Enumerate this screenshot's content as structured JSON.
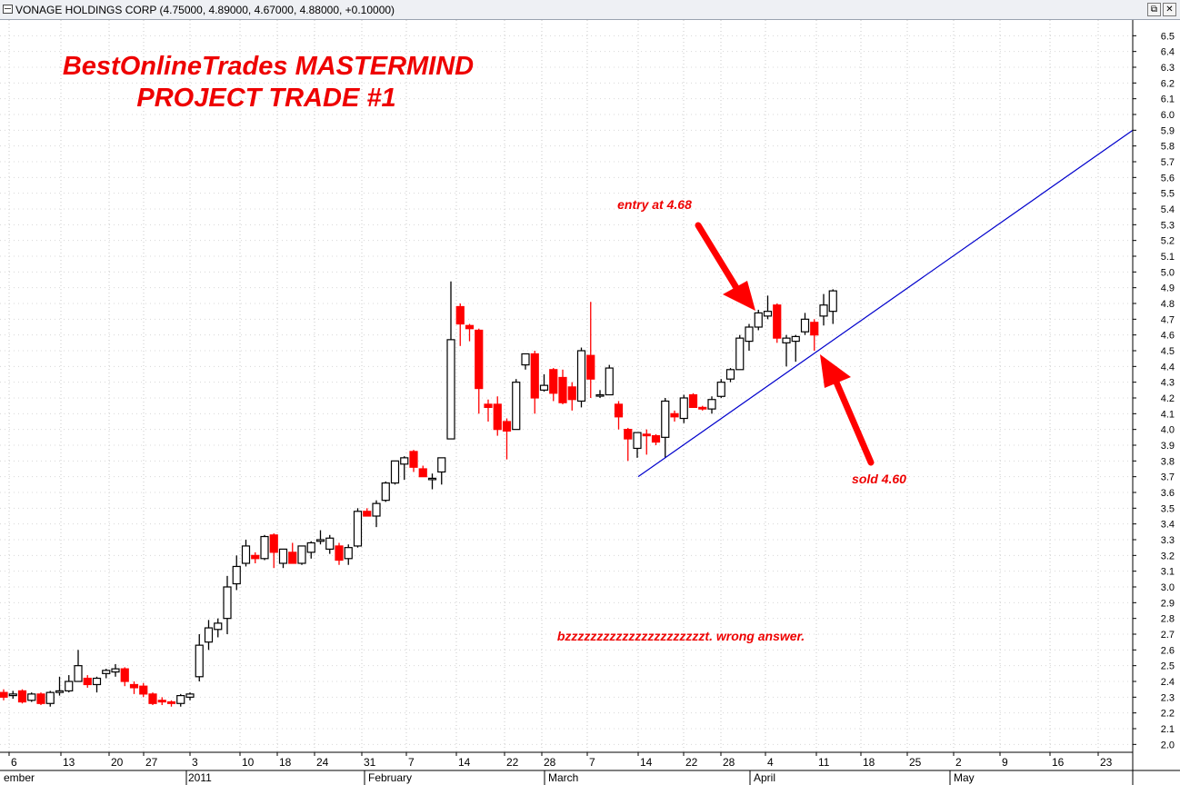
{
  "window": {
    "title": "VONAGE HOLDINGS CORP (4.75000, 4.89000, 4.67000, 4.88000, +0.10000)",
    "restore_glyph": "⧉",
    "close_glyph": "✕"
  },
  "chart_data": {
    "type": "candlestick",
    "title": "BestOnlineTrades MASTERMIND",
    "subtitle": "PROJECT TRADE #1",
    "ylim": [
      1.95,
      6.6
    ],
    "y_ticks": [
      "2.0",
      "2.1",
      "2.2",
      "2.3",
      "2.4",
      "2.5",
      "2.6",
      "2.7",
      "2.8",
      "2.9",
      "3.0",
      "3.1",
      "3.2",
      "3.3",
      "3.4",
      "3.5",
      "3.6",
      "3.7",
      "3.8",
      "3.9",
      "4.0",
      "4.1",
      "4.2",
      "4.3",
      "4.4",
      "4.5",
      "4.6",
      "4.7",
      "4.8",
      "4.9",
      "5.0",
      "5.1",
      "5.2",
      "5.3",
      "5.4",
      "5.5",
      "5.6",
      "5.7",
      "5.8",
      "5.9",
      "6.0",
      "6.1",
      "6.2",
      "6.3",
      "6.4",
      "6.5"
    ],
    "x_ticks": [
      "6",
      "13",
      "20",
      "27",
      "3",
      "10",
      "18",
      "24",
      "31",
      "7",
      "14",
      "22",
      "28",
      "7",
      "14",
      "22",
      "28",
      "4",
      "11",
      "18",
      "25",
      "2",
      "9",
      "16",
      "23"
    ],
    "month_labels": [
      "ember",
      "2011",
      "February",
      "March",
      "April",
      "May"
    ],
    "colors": {
      "up_body": "#ffffff",
      "up_outline": "#000000",
      "down_body": "#ff0000",
      "trendline": "#0000cc",
      "annotation": "#ee0000"
    },
    "candles": [
      [
        2.33,
        2.35,
        2.28,
        2.3
      ],
      [
        2.31,
        2.34,
        2.29,
        2.32
      ],
      [
        2.34,
        2.35,
        2.26,
        2.27
      ],
      [
        2.28,
        2.33,
        2.27,
        2.32
      ],
      [
        2.32,
        2.33,
        2.25,
        2.26
      ],
      [
        2.26,
        2.34,
        2.24,
        2.33
      ],
      [
        2.33,
        2.43,
        2.31,
        2.34
      ],
      [
        2.34,
        2.44,
        2.33,
        2.4
      ],
      [
        2.4,
        2.6,
        2.4,
        2.5
      ],
      [
        2.42,
        2.44,
        2.36,
        2.38
      ],
      [
        2.38,
        2.43,
        2.33,
        2.42
      ],
      [
        2.45,
        2.48,
        2.42,
        2.47
      ],
      [
        2.46,
        2.51,
        2.43,
        2.48
      ],
      [
        2.48,
        2.49,
        2.37,
        2.4
      ],
      [
        2.38,
        2.4,
        2.32,
        2.36
      ],
      [
        2.37,
        2.39,
        2.3,
        2.32
      ],
      [
        2.32,
        2.33,
        2.25,
        2.26
      ],
      [
        2.28,
        2.3,
        2.25,
        2.27
      ],
      [
        2.27,
        2.28,
        2.24,
        2.26
      ],
      [
        2.26,
        2.32,
        2.24,
        2.31
      ],
      [
        2.3,
        2.33,
        2.28,
        2.32
      ],
      [
        2.43,
        2.7,
        2.4,
        2.63
      ],
      [
        2.65,
        2.79,
        2.6,
        2.74
      ],
      [
        2.73,
        2.8,
        2.68,
        2.77
      ],
      [
        2.8,
        3.07,
        2.7,
        3.0
      ],
      [
        3.02,
        3.2,
        2.98,
        3.13
      ],
      [
        3.15,
        3.3,
        3.13,
        3.26
      ],
      [
        3.2,
        3.22,
        3.15,
        3.18
      ],
      [
        3.18,
        3.33,
        3.17,
        3.32
      ],
      [
        3.33,
        3.34,
        3.12,
        3.22
      ],
      [
        3.15,
        3.24,
        3.12,
        3.24
      ],
      [
        3.22,
        3.28,
        3.15,
        3.15
      ],
      [
        3.15,
        3.26,
        3.14,
        3.26
      ],
      [
        3.22,
        3.29,
        3.18,
        3.28
      ],
      [
        3.29,
        3.36,
        3.27,
        3.3
      ],
      [
        3.24,
        3.33,
        3.21,
        3.31
      ],
      [
        3.26,
        3.28,
        3.14,
        3.17
      ],
      [
        3.18,
        3.27,
        3.14,
        3.25
      ],
      [
        3.26,
        3.5,
        3.25,
        3.48
      ],
      [
        3.48,
        3.5,
        3.45,
        3.45
      ],
      [
        3.45,
        3.55,
        3.38,
        3.53
      ],
      [
        3.55,
        3.67,
        3.54,
        3.66
      ],
      [
        3.66,
        3.77,
        3.65,
        3.8
      ],
      [
        3.78,
        3.83,
        3.68,
        3.82
      ],
      [
        3.86,
        3.87,
        3.73,
        3.76
      ],
      [
        3.75,
        3.77,
        3.7,
        3.7
      ],
      [
        3.69,
        3.72,
        3.62,
        3.69
      ],
      [
        3.73,
        3.82,
        3.65,
        3.82
      ],
      [
        3.94,
        4.94,
        3.94,
        4.57
      ],
      [
        4.78,
        4.8,
        4.53,
        4.67
      ],
      [
        4.66,
        4.67,
        4.56,
        4.64
      ],
      [
        4.63,
        4.64,
        4.1,
        4.26
      ],
      [
        4.16,
        4.19,
        4.05,
        4.14
      ],
      [
        4.16,
        4.21,
        3.96,
        4.0
      ],
      [
        4.05,
        4.07,
        3.81,
        3.99
      ],
      [
        4.0,
        4.32,
        4.0,
        4.3
      ],
      [
        4.41,
        4.48,
        4.38,
        4.48
      ],
      [
        4.48,
        4.5,
        4.1,
        4.2
      ],
      [
        4.25,
        4.35,
        4.24,
        4.28
      ],
      [
        4.38,
        4.39,
        4.18,
        4.23
      ],
      [
        4.33,
        4.38,
        4.16,
        4.17
      ],
      [
        4.27,
        4.3,
        4.12,
        4.19
      ],
      [
        4.18,
        4.52,
        4.14,
        4.5
      ],
      [
        4.47,
        4.81,
        4.2,
        4.32
      ],
      [
        4.22,
        4.25,
        4.2,
        4.22
      ],
      [
        4.22,
        4.41,
        4.23,
        4.39
      ],
      [
        4.16,
        4.18,
        4.0,
        4.08
      ],
      [
        4.0,
        4.01,
        3.8,
        3.94
      ],
      [
        3.88,
        3.98,
        3.82,
        3.98
      ],
      [
        3.97,
        4.0,
        3.84,
        3.96
      ],
      [
        3.96,
        3.97,
        3.9,
        3.92
      ],
      [
        3.95,
        4.2,
        3.82,
        4.18
      ],
      [
        4.1,
        4.12,
        4.05,
        4.08
      ],
      [
        4.07,
        4.22,
        4.04,
        4.2
      ],
      [
        4.22,
        4.23,
        4.15,
        4.14
      ],
      [
        4.14,
        4.15,
        4.12,
        4.13
      ],
      [
        4.13,
        4.21,
        4.1,
        4.19
      ],
      [
        4.21,
        4.32,
        4.2,
        4.3
      ],
      [
        4.32,
        4.39,
        4.3,
        4.38
      ],
      [
        4.38,
        4.6,
        4.38,
        4.58
      ],
      [
        4.56,
        4.67,
        4.5,
        4.65
      ],
      [
        4.65,
        4.76,
        4.63,
        4.74
      ],
      [
        4.72,
        4.85,
        4.7,
        4.75
      ],
      [
        4.79,
        4.8,
        4.55,
        4.58
      ],
      [
        4.55,
        4.6,
        4.4,
        4.58
      ],
      [
        4.56,
        4.6,
        4.43,
        4.59
      ],
      [
        4.62,
        4.74,
        4.6,
        4.7
      ],
      [
        4.68,
        4.7,
        4.5,
        4.6
      ],
      [
        4.72,
        4.86,
        4.66,
        4.79
      ],
      [
        4.75,
        4.89,
        4.67,
        4.88
      ]
    ],
    "trendline": {
      "start": {
        "x": "2011-03-14",
        "y": 3.7
      },
      "end": {
        "x": "2011-05-27",
        "y": 5.9
      }
    },
    "annotations": {
      "entry": "entry at 4.68",
      "sold": "sold 4.60",
      "comment": "bzzzzzzzzzzzzzzzzzzzzzzt. wrong answer."
    }
  }
}
